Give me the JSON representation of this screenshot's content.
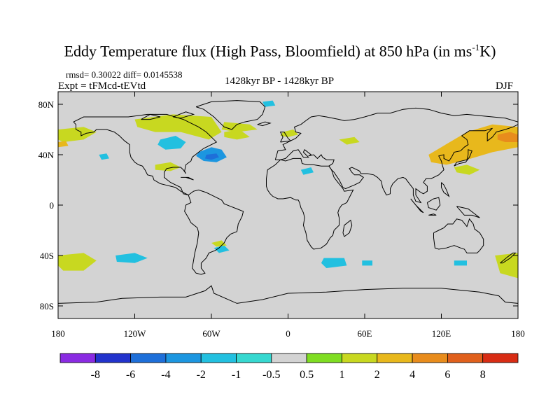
{
  "title": {
    "main": "Eddy Temperature flux (High Pass, Bloomfield) at 850 hPa (in ms",
    "exponent": "-1",
    "unit_end": "K)"
  },
  "stats": "rmsd= 0.30022 diff= 0.0145538",
  "experiment": "Expt = tFMcd-tEVtd",
  "period": "1428kyr BP - 1428kyr BP",
  "season": "DJF",
  "map": {
    "lon_range": [
      -180,
      180
    ],
    "lat_range": [
      -90,
      90
    ],
    "ocean_land_color": "#d3d3d3",
    "coastline_color": "#000000"
  },
  "axes": {
    "x_ticks": [
      {
        "value": -180,
        "label": "180"
      },
      {
        "value": -120,
        "label": "120W"
      },
      {
        "value": -60,
        "label": "60W"
      },
      {
        "value": 0,
        "label": "0"
      },
      {
        "value": 60,
        "label": "60E"
      },
      {
        "value": 120,
        "label": "120E"
      },
      {
        "value": 180,
        "label": "180"
      }
    ],
    "y_ticks": [
      {
        "value": 80,
        "label": "80N"
      },
      {
        "value": 40,
        "label": "40N"
      },
      {
        "value": 0,
        "label": "0"
      },
      {
        "value": -40,
        "label": "40S"
      },
      {
        "value": -80,
        "label": "80S"
      }
    ]
  },
  "colorbar": {
    "colors": [
      "#8a2be2",
      "#2233cc",
      "#1e6fd9",
      "#1c96e0",
      "#22c0e0",
      "#36d8d0",
      "#d3d3d3",
      "#7fdd22",
      "#c8d820",
      "#e8b81c",
      "#e88c1c",
      "#e0601c",
      "#d82c14"
    ],
    "labels": [
      "-8",
      "-6",
      "-4",
      "-2",
      "-1",
      "-0.5",
      "0.5",
      "1",
      "2",
      "4",
      "6",
      "8"
    ]
  },
  "chart_data": {
    "type": "heatmap",
    "title": "Eddy Temperature flux (High Pass, Bloomfield) at 850 hPa (in ms-1K)",
    "levels": [
      -8,
      -6,
      -4,
      -2,
      -1,
      -0.5,
      0.5,
      1,
      2,
      4,
      6,
      8
    ],
    "regions": [
      {
        "name": "n-america-east-low",
        "value": -3,
        "polygon": [
          [
            -70,
            42
          ],
          [
            -60,
            46
          ],
          [
            -52,
            44
          ],
          [
            -48,
            38
          ],
          [
            -56,
            34
          ],
          [
            -66,
            35
          ],
          [
            -72,
            39
          ]
        ]
      },
      {
        "name": "n-america-east-core",
        "value": -5,
        "polygon": [
          [
            -64,
            40
          ],
          [
            -56,
            41
          ],
          [
            -54,
            38
          ],
          [
            -60,
            36
          ],
          [
            -65,
            37
          ]
        ]
      },
      {
        "name": "hudson-low",
        "value": -1,
        "polygon": [
          [
            -100,
            52
          ],
          [
            -88,
            55
          ],
          [
            -80,
            50
          ],
          [
            -84,
            45
          ],
          [
            -96,
            44
          ],
          [
            -102,
            48
          ]
        ]
      },
      {
        "name": "pacific-low",
        "value": -1,
        "polygon": [
          [
            -148,
            40
          ],
          [
            -142,
            41
          ],
          [
            -140,
            37
          ],
          [
            -146,
            36
          ]
        ]
      },
      {
        "name": "arctic-canada-low",
        "value": -1,
        "polygon": [
          [
            -20,
            82
          ],
          [
            -12,
            83
          ],
          [
            -10,
            79
          ],
          [
            -18,
            78
          ]
        ]
      },
      {
        "name": "alaska-high",
        "value": 1.5,
        "polygon": [
          [
            -180,
            60
          ],
          [
            -160,
            62
          ],
          [
            -150,
            58
          ],
          [
            -160,
            52
          ],
          [
            -176,
            50
          ],
          [
            -180,
            52
          ]
        ]
      },
      {
        "name": "alaska-core",
        "value": 3,
        "polygon": [
          [
            -180,
            50
          ],
          [
            -174,
            51
          ],
          [
            -172,
            47
          ],
          [
            -180,
            46
          ]
        ]
      },
      {
        "name": "canada-high",
        "value": 1.5,
        "polygon": [
          [
            -120,
            68
          ],
          [
            -90,
            72
          ],
          [
            -60,
            70
          ],
          [
            -52,
            58
          ],
          [
            -62,
            52
          ],
          [
            -84,
            58
          ],
          [
            -104,
            58
          ],
          [
            -118,
            62
          ]
        ]
      },
      {
        "name": "greenland-high",
        "value": 1.5,
        "polygon": [
          [
            -50,
            66
          ],
          [
            -30,
            64
          ],
          [
            -24,
            60
          ],
          [
            -40,
            58
          ],
          [
            -52,
            60
          ]
        ]
      },
      {
        "name": "us-south-high",
        "value": 1.5,
        "polygon": [
          [
            -104,
            32
          ],
          [
            -92,
            34
          ],
          [
            -84,
            30
          ],
          [
            -92,
            27
          ],
          [
            -104,
            28
          ]
        ]
      },
      {
        "name": "nw-atlantic-high",
        "value": 1.5,
        "polygon": [
          [
            -50,
            58
          ],
          [
            -38,
            60
          ],
          [
            -30,
            54
          ],
          [
            -40,
            52
          ],
          [
            -50,
            54
          ]
        ]
      },
      {
        "name": "europe-high",
        "value": 1.5,
        "polygon": [
          [
            -4,
            58
          ],
          [
            4,
            60
          ],
          [
            8,
            56
          ],
          [
            0,
            54
          ],
          [
            -6,
            55
          ]
        ]
      },
      {
        "name": "east-asia-high",
        "value": 2.5,
        "polygon": [
          [
            110,
            40
          ],
          [
            140,
            58
          ],
          [
            160,
            64
          ],
          [
            180,
            62
          ],
          [
            180,
            46
          ],
          [
            160,
            42
          ],
          [
            140,
            36
          ],
          [
            124,
            32
          ],
          [
            112,
            34
          ]
        ]
      },
      {
        "name": "east-asia-core",
        "value": 4.5,
        "polygon": [
          [
            164,
            56
          ],
          [
            174,
            58
          ],
          [
            180,
            56
          ],
          [
            180,
            50
          ],
          [
            170,
            50
          ],
          [
            164,
            52
          ]
        ]
      },
      {
        "name": "siberia-high",
        "value": 1.5,
        "polygon": [
          [
            40,
            52
          ],
          [
            52,
            54
          ],
          [
            56,
            50
          ],
          [
            46,
            48
          ]
        ]
      },
      {
        "name": "pacific-nw-high",
        "value": 1.5,
        "polygon": [
          [
            130,
            30
          ],
          [
            140,
            32
          ],
          [
            150,
            28
          ],
          [
            142,
            24
          ],
          [
            132,
            26
          ]
        ]
      },
      {
        "name": "africa-low",
        "value": -1,
        "polygon": [
          [
            10,
            28
          ],
          [
            18,
            30
          ],
          [
            20,
            26
          ],
          [
            12,
            24
          ]
        ]
      },
      {
        "name": "south-pacific-high",
        "value": 2,
        "polygon": [
          [
            -180,
            -40
          ],
          [
            -160,
            -38
          ],
          [
            -150,
            -44
          ],
          [
            -160,
            -52
          ],
          [
            -176,
            -52
          ],
          [
            -180,
            -48
          ]
        ]
      },
      {
        "name": "south-pacific-low-a",
        "value": -1,
        "polygon": [
          [
            -135,
            -40
          ],
          [
            -120,
            -38
          ],
          [
            -110,
            -42
          ],
          [
            -120,
            -46
          ],
          [
            -134,
            -45
          ]
        ]
      },
      {
        "name": "s-america-low",
        "value": -1,
        "polygon": [
          [
            -58,
            -34
          ],
          [
            -50,
            -32
          ],
          [
            -46,
            -36
          ],
          [
            -54,
            -38
          ]
        ]
      },
      {
        "name": "s-america-high",
        "value": 1.5,
        "polygon": [
          [
            -60,
            -30
          ],
          [
            -52,
            -28
          ],
          [
            -48,
            -32
          ],
          [
            -56,
            -33
          ]
        ]
      },
      {
        "name": "south-atlantic-low",
        "value": -1,
        "polygon": [
          [
            28,
            -42
          ],
          [
            44,
            -42
          ],
          [
            46,
            -48
          ],
          [
            30,
            -50
          ],
          [
            26,
            -46
          ]
        ]
      },
      {
        "name": "indian-ocean-low",
        "value": -1,
        "polygon": [
          [
            58,
            -44
          ],
          [
            66,
            -44
          ],
          [
            66,
            -48
          ],
          [
            58,
            -48
          ]
        ]
      },
      {
        "name": "aus-low",
        "value": -1,
        "polygon": [
          [
            130,
            -44
          ],
          [
            140,
            -44
          ],
          [
            140,
            -48
          ],
          [
            130,
            -48
          ]
        ]
      },
      {
        "name": "sw-pacific-high",
        "value": 1.5,
        "polygon": [
          [
            162,
            -40
          ],
          [
            180,
            -38
          ],
          [
            180,
            -58
          ],
          [
            166,
            -54
          ]
        ]
      }
    ]
  }
}
